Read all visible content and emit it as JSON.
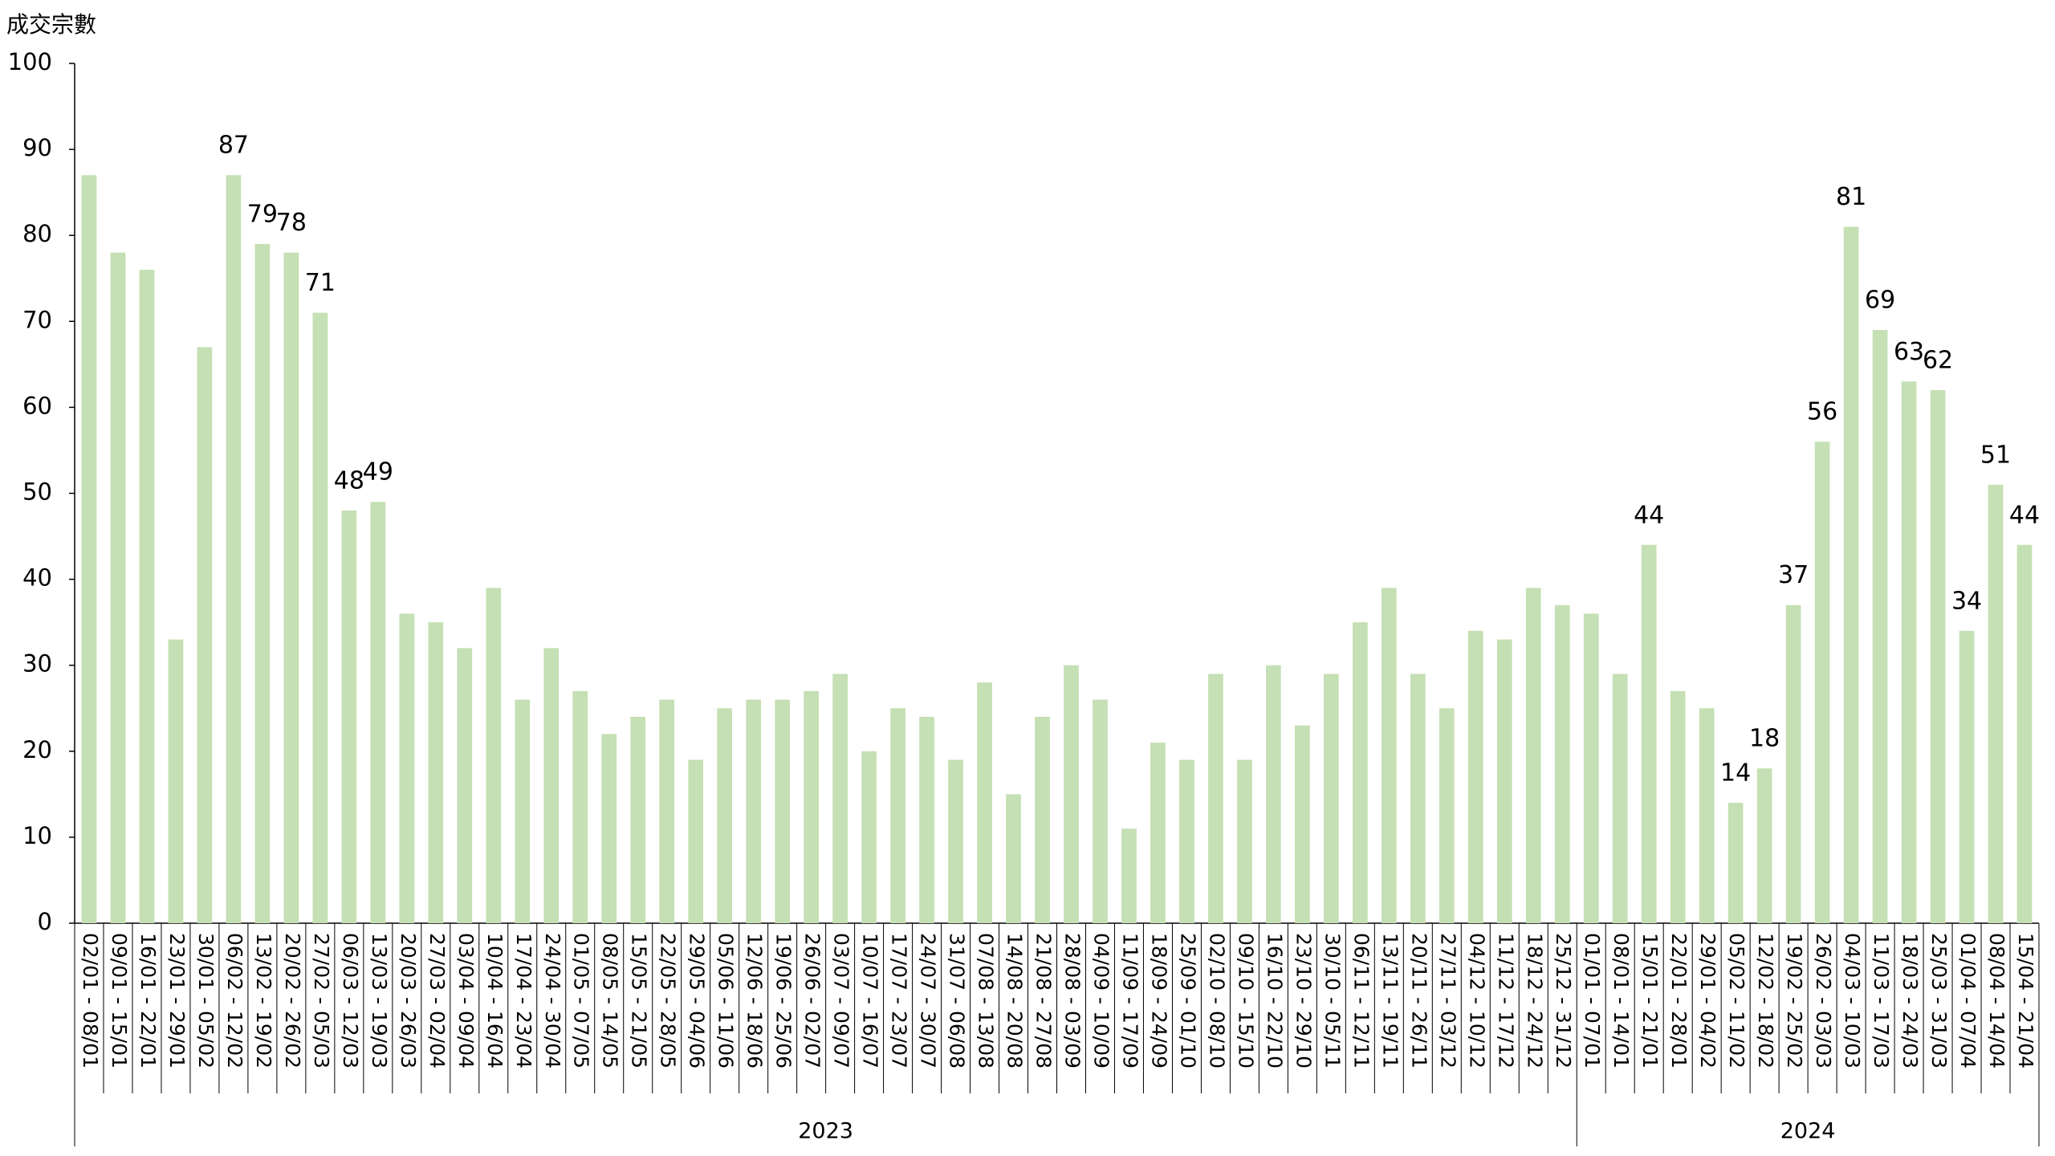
{
  "chart_data": {
    "type": "bar",
    "y_label": "成交宗數",
    "color": "#c5e0b4",
    "ylim": [
      0,
      100
    ],
    "yticks": [
      0,
      10,
      20,
      30,
      40,
      50,
      60,
      70,
      80,
      90,
      100
    ],
    "groups": [
      {
        "name": "2023",
        "categories": [
          "02/01 - 08/01",
          "09/01 - 15/01",
          "16/01 - 22/01",
          "23/01 - 29/01",
          "30/01 - 05/02",
          "06/02 - 12/02",
          "13/02 - 19/02",
          "20/02 - 26/02",
          "27/02 - 05/03",
          "06/03 - 12/03",
          "13/03 - 19/03",
          "20/03 - 26/03",
          "27/03 - 02/04",
          "03/04 - 09/04",
          "10/04 - 16/04",
          "17/04 - 23/04",
          "24/04 - 30/04",
          "01/05 - 07/05",
          "08/05 - 14/05",
          "15/05 - 21/05",
          "22/05 - 28/05",
          "29/05 - 04/06",
          "05/06 - 11/06",
          "12/06 - 18/06",
          "19/06 - 25/06",
          "26/06 - 02/07",
          "03/07 - 09/07",
          "10/07 - 16/07",
          "17/07 - 23/07",
          "24/07 - 30/07",
          "31/07 - 06/08",
          "07/08 - 13/08",
          "14/08 - 20/08",
          "21/08 - 27/08",
          "28/08 - 03/09",
          "04/09 - 10/09",
          "11/09 - 17/09",
          "18/09 - 24/09",
          "25/09 - 01/10",
          "02/10 - 08/10",
          "09/10 - 15/10",
          "16/10 - 22/10",
          "23/10 - 29/10",
          "30/10 - 05/11",
          "06/11 - 12/11",
          "13/11 - 19/11",
          "20/11 - 26/11",
          "27/11 - 03/12",
          "04/12 - 10/12",
          "11/12 - 17/12",
          "18/12 - 24/12",
          "25/12 - 31/12"
        ]
      },
      {
        "name": "2024",
        "categories": [
          "01/01 - 07/01",
          "08/01 - 14/01",
          "15/01 - 21/01",
          "22/01 - 28/01",
          "29/01 - 04/02",
          "05/02 - 11/02",
          "12/02 - 18/02",
          "19/02 - 25/02",
          "26/02 - 03/03",
          "04/03 - 10/03",
          "11/03 - 17/03",
          "18/03 - 24/03",
          "25/03 - 31/03",
          "01/04 - 07/04",
          "08/04 - 14/04",
          "15/04 - 21/04"
        ]
      }
    ],
    "values": [
      87,
      78,
      76,
      33,
      67,
      87,
      79,
      78,
      71,
      48,
      49,
      36,
      35,
      32,
      39,
      26,
      32,
      27,
      22,
      24,
      26,
      19,
      25,
      26,
      26,
      27,
      29,
      20,
      25,
      24,
      19,
      28,
      15,
      24,
      30,
      26,
      11,
      21,
      19,
      29,
      19,
      30,
      23,
      29,
      35,
      39,
      29,
      25,
      34,
      33,
      39,
      37,
      36,
      29,
      44,
      27,
      25,
      14,
      18,
      37,
      56,
      81,
      69,
      63,
      62,
      34,
      51,
      44
    ],
    "value_labels": [
      null,
      null,
      null,
      null,
      null,
      "87",
      "79",
      "78",
      "71",
      "48",
      "49",
      null,
      null,
      null,
      null,
      null,
      null,
      null,
      null,
      null,
      null,
      null,
      null,
      null,
      null,
      null,
      null,
      null,
      null,
      null,
      null,
      null,
      null,
      null,
      null,
      null,
      null,
      null,
      null,
      null,
      null,
      null,
      null,
      null,
      null,
      null,
      null,
      null,
      null,
      null,
      null,
      null,
      null,
      null,
      "44",
      null,
      null,
      "14",
      "18",
      "37",
      "56",
      "81",
      "69",
      "63",
      "62",
      "34",
      "51",
      "44"
    ]
  }
}
